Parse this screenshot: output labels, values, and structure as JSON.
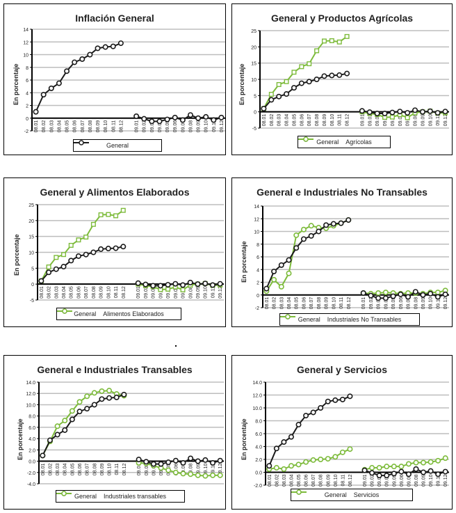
{
  "colors": {
    "general": "#1a1a1a",
    "green": "#7dbb3b",
    "grid": "#bdbdbd"
  },
  "chart_data": [
    {
      "type": "line",
      "title": "Inflación General",
      "ylabel": "En porcentaje",
      "xlabel": "",
      "ylim": [
        -2,
        14
      ],
      "yticks": [
        "-2",
        "0",
        "2",
        "4",
        "6",
        "8",
        "10",
        "12",
        "14"
      ],
      "ytick_values": [
        -2,
        0,
        2,
        4,
        6,
        8,
        10,
        12,
        14
      ],
      "grid": true,
      "legend": "bottom",
      "categories_2008": [
        "08.01",
        "08.02",
        "08.03",
        "08.04",
        "08.05",
        "08.06",
        "08.07",
        "08.08",
        "08.09",
        "08.10",
        "08.11",
        "08.12"
      ],
      "categories_2009": [
        "09.01",
        "09.02",
        "09.03",
        "09.04",
        "09.05",
        "09.06",
        "09.07",
        "09.08",
        "09.09",
        "09.10",
        "09.11",
        "09.12"
      ],
      "series": [
        {
          "name": "General",
          "marker": "circle",
          "color": "#1a1a1a",
          "values_2008": [
            1.0,
            3.7,
            4.7,
            5.5,
            7.4,
            8.8,
            9.3,
            10.0,
            11.0,
            11.2,
            11.3,
            11.8
          ],
          "values_2009": [
            0.3,
            -0.1,
            -0.5,
            -0.5,
            -0.2,
            0.1,
            -0.3,
            0.5,
            0.0,
            0.2,
            -0.3,
            0.1
          ]
        }
      ]
    },
    {
      "type": "line",
      "title": "General y Productos Agrícolas",
      "ylabel": "En porcentaje",
      "xlabel": "",
      "ylim": [
        -5,
        25
      ],
      "yticks": [
        "-5",
        "0",
        "5",
        "10",
        "15",
        "20",
        "25"
      ],
      "ytick_values": [
        -5,
        0,
        5,
        10,
        15,
        20,
        25
      ],
      "grid": true,
      "legend": "bottom",
      "categories_2008": [
        "08.01",
        "08.02",
        "08.03",
        "08.04",
        "08.05",
        "08.06",
        "08.07",
        "08.08",
        "08.09",
        "08.10",
        "08.11",
        "08.12"
      ],
      "categories_2009": [
        "09.01",
        "09.02",
        "09.03",
        "09.04",
        "09.05",
        "09.06",
        "09.07",
        "09.08",
        "09.09",
        "09.10",
        "09.11",
        "09.12"
      ],
      "series": [
        {
          "name": "General",
          "marker": "circle",
          "color": "#1a1a1a",
          "values_2008": [
            1.0,
            3.7,
            4.7,
            5.5,
            7.4,
            8.8,
            9.3,
            10.0,
            11.0,
            11.2,
            11.3,
            11.8
          ],
          "values_2009": [
            0.3,
            -0.1,
            -0.5,
            -0.5,
            -0.2,
            0.1,
            -0.3,
            0.5,
            0.0,
            0.2,
            -0.3,
            0.1
          ]
        },
        {
          "name": "Agrícolas",
          "marker": "square",
          "color": "#7dbb3b",
          "values_2008": [
            1.0,
            5.4,
            8.4,
            9.3,
            12.2,
            13.9,
            14.8,
            18.8,
            21.8,
            21.9,
            21.5,
            23.2
          ],
          "values_2009": [
            0.0,
            -0.5,
            -0.8,
            -1.7,
            -1.6,
            -0.9,
            -1.8,
            -0.3,
            0.0,
            0.2,
            -0.4,
            -0.3
          ]
        }
      ]
    },
    {
      "type": "line",
      "title": "General y Alimentos Elaborados",
      "ylabel": "En porcentaje",
      "xlabel": "",
      "ylim": [
        -5,
        25
      ],
      "yticks": [
        "-5",
        "0",
        "5",
        "10",
        "15",
        "20",
        "25"
      ],
      "ytick_values": [
        -5,
        0,
        5,
        10,
        15,
        20,
        25
      ],
      "grid": true,
      "legend": "bottom",
      "categories_2008": [
        "08.01",
        "08.02",
        "08.03",
        "08.04",
        "08.05",
        "08.06",
        "08.07",
        "08.08",
        "08.09",
        "08.10",
        "08.11",
        "08.12"
      ],
      "categories_2009": [
        "09.01",
        "09.02",
        "09.03",
        "09.04",
        "09.05",
        "09.06",
        "09.07",
        "09.08",
        "09.09",
        "09.10",
        "09.11",
        "09.12"
      ],
      "series": [
        {
          "name": "General",
          "marker": "circle",
          "color": "#1a1a1a",
          "values_2008": [
            1.0,
            3.7,
            4.7,
            5.5,
            7.4,
            8.8,
            9.3,
            10.0,
            11.0,
            11.2,
            11.3,
            11.8
          ],
          "values_2009": [
            0.3,
            -0.1,
            -0.5,
            -0.5,
            -0.2,
            0.1,
            -0.3,
            0.5,
            0.0,
            0.2,
            -0.3,
            0.1
          ]
        },
        {
          "name": "Alimentos Elaborados",
          "marker": "square",
          "color": "#7dbb3b",
          "values_2008": [
            1.0,
            5.4,
            8.4,
            9.3,
            12.2,
            13.9,
            14.8,
            18.8,
            21.8,
            21.9,
            21.5,
            23.2
          ],
          "values_2009": [
            0.0,
            -0.5,
            -0.8,
            -1.7,
            -1.6,
            -0.9,
            -1.8,
            -0.3,
            0.0,
            0.2,
            -0.4,
            -0.3
          ]
        }
      ]
    },
    {
      "type": "line",
      "title": "General e Industriales No Transables",
      "ylabel": "En porcentaje",
      "xlabel": "",
      "ylim": [
        -2,
        14
      ],
      "yticks": [
        "-2",
        "0",
        "2",
        "4",
        "6",
        "8",
        "10",
        "12",
        "14"
      ],
      "ytick_values": [
        -2,
        0,
        2,
        4,
        6,
        8,
        10,
        12,
        14
      ],
      "grid": true,
      "legend": "bottom",
      "categories_2008": [
        "08.01",
        "08.02",
        "08.03",
        "08.04",
        "08.05",
        "08.06",
        "08.07",
        "08.08",
        "08.09",
        "08.10",
        "08.11",
        "08.12"
      ],
      "categories_2009": [
        "09.01",
        "09.02",
        "09.03",
        "09.04",
        "09.05",
        "09.06",
        "09.07",
        "09.08",
        "09.09",
        "09.10",
        "09.11",
        "09.12"
      ],
      "series": [
        {
          "name": "General",
          "marker": "circle",
          "color": "#1a1a1a",
          "values_2008": [
            1.0,
            3.7,
            4.7,
            5.5,
            7.4,
            8.8,
            9.3,
            10.0,
            11.0,
            11.2,
            11.3,
            11.8
          ],
          "values_2009": [
            0.3,
            -0.1,
            -0.5,
            -0.5,
            -0.2,
            0.1,
            -0.3,
            0.5,
            0.0,
            0.2,
            -0.3,
            0.1
          ]
        },
        {
          "name": "Industriales No Transables",
          "marker": "circle",
          "color": "#7dbb3b",
          "values_2008": [
            0.6,
            2.4,
            1.3,
            3.4,
            9.4,
            10.3,
            10.9,
            10.6,
            10.5,
            10.9,
            11.3,
            11.8
          ],
          "values_2009": [
            0.3,
            0.2,
            0.3,
            0.4,
            0.3,
            0.2,
            0.3,
            0.3,
            0.2,
            0.4,
            0.4,
            0.7
          ]
        }
      ]
    },
    {
      "type": "line",
      "title": "General e Industriales Transables",
      "ylabel": "En porcentaje",
      "xlabel": "",
      "ylim": [
        -4,
        14
      ],
      "yticks": [
        "-4.0",
        "-2.0",
        "0.0",
        "2.0",
        "4.0",
        "6.0",
        "8.0",
        "10.0",
        "12.0",
        "14.0"
      ],
      "ytick_values": [
        -4,
        -2,
        0,
        2,
        4,
        6,
        8,
        10,
        12,
        14
      ],
      "grid": true,
      "legend": "bottom",
      "categories_2008": [
        "08.01",
        "08.02",
        "08.03",
        "08.04",
        "08.05",
        "08.06",
        "08.07",
        "08.08",
        "08.09",
        "08.10",
        "08.11",
        "08.12"
      ],
      "categories_2009": [
        "09.01",
        "09.02",
        "09.03",
        "09.04",
        "09.05",
        "09.06",
        "09.07",
        "09.08",
        "09.09",
        "09.10",
        "09.11",
        "09.12"
      ],
      "series": [
        {
          "name": "General",
          "marker": "circle",
          "color": "#1a1a1a",
          "values_2008": [
            1.0,
            3.7,
            4.7,
            5.5,
            7.4,
            8.8,
            9.3,
            10.0,
            11.0,
            11.2,
            11.3,
            11.8
          ],
          "values_2009": [
            0.3,
            -0.1,
            -0.5,
            -0.5,
            -0.2,
            0.1,
            -0.3,
            0.5,
            0.0,
            0.2,
            -0.3,
            0.1
          ]
        },
        {
          "name": "Industriales transables",
          "marker": "circle",
          "color": "#7dbb3b",
          "values_2008": [
            1.0,
            3.5,
            6.2,
            7.2,
            8.9,
            10.5,
            11.5,
            12.1,
            12.4,
            12.5,
            11.9,
            11.6
          ],
          "values_2009": [
            -0.3,
            -0.4,
            -0.8,
            -1.2,
            -1.6,
            -2.0,
            -2.2,
            -2.3,
            -2.5,
            -2.6,
            -2.5,
            -2.5
          ]
        }
      ]
    },
    {
      "type": "line",
      "title": "General y Servicios",
      "ylabel": "En porcentaje",
      "xlabel": "",
      "ylim": [
        -2,
        14
      ],
      "yticks": [
        "-2.0",
        "0.0",
        "2.0",
        "4.0",
        "6.0",
        "8.0",
        "10.0",
        "12.0",
        "14.0"
      ],
      "ytick_values": [
        -2,
        0,
        2,
        4,
        6,
        8,
        10,
        12,
        14
      ],
      "grid": true,
      "legend": "bottom",
      "categories_2008": [
        "08.01",
        "08.02",
        "08.03",
        "08.04",
        "08.05",
        "08.06",
        "08.07",
        "08.08",
        "08.09",
        "08.10",
        "08.11",
        "08.12"
      ],
      "categories_2009": [
        "09.01",
        "09.02",
        "09.03",
        "09.04",
        "09.05",
        "09.06",
        "09.07",
        "09.08",
        "09.09",
        "09.10",
        "09.11",
        "09.12"
      ],
      "series": [
        {
          "name": "General",
          "marker": "circle",
          "color": "#1a1a1a",
          "values_2008": [
            1.0,
            3.7,
            4.7,
            5.5,
            7.4,
            8.8,
            9.3,
            10.0,
            11.0,
            11.2,
            11.3,
            11.8
          ],
          "values_2009": [
            0.3,
            -0.1,
            -0.5,
            -0.5,
            -0.2,
            0.1,
            -0.3,
            0.5,
            0.0,
            0.2,
            -0.3,
            0.1
          ]
        },
        {
          "name": "Servicios",
          "marker": "circle",
          "color": "#7dbb3b",
          "values_2008": [
            0.5,
            0.7,
            0.5,
            1.0,
            1.2,
            1.6,
            1.9,
            2.0,
            2.1,
            2.4,
            3.1,
            3.6
          ],
          "values_2009": [
            0.4,
            0.7,
            0.7,
            0.9,
            0.9,
            0.9,
            1.3,
            1.5,
            1.5,
            1.6,
            1.8,
            2.2
          ]
        }
      ]
    }
  ]
}
